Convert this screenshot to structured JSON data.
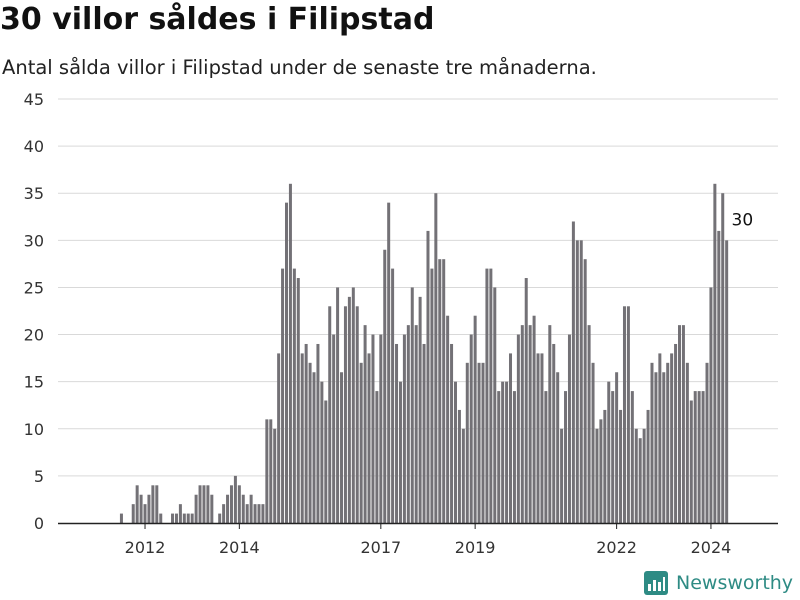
{
  "header": {
    "title": "30 villor såldes i Filipstad",
    "subtitle": "Antal sålda villor i Filipstad under de senaste tre månaderna."
  },
  "branding": {
    "name": "Newsworthy",
    "icon": "bar-chart-logo-icon",
    "color": "#2e8b84"
  },
  "chart_data": {
    "type": "bar",
    "title": "30 villor såldes i Filipstad",
    "subtitle": "Antal sålda villor i Filipstad under de senaste tre månaderna.",
    "xlabel": "",
    "ylabel": "",
    "ylim": [
      0,
      45
    ],
    "yticks": [
      0,
      5,
      10,
      15,
      20,
      25,
      30,
      35,
      40,
      45
    ],
    "grid": true,
    "legend": "none",
    "bar_color": "#737176",
    "highlight_color": "#1a9a8e",
    "start": "2011-01",
    "xticks": [
      {
        "label": "2012",
        "index": 14
      },
      {
        "label": "2014",
        "index": 38
      },
      {
        "label": "2017",
        "index": 74
      },
      {
        "label": "2019",
        "index": 98
      },
      {
        "label": "2022",
        "index": 134
      },
      {
        "label": "2024",
        "index": 158
      }
    ],
    "values": [
      0,
      0,
      0,
      0,
      0,
      0,
      0,
      0,
      1,
      0,
      0,
      2,
      4,
      3,
      2,
      3,
      4,
      4,
      1,
      0,
      0,
      1,
      1,
      2,
      1,
      1,
      1,
      3,
      4,
      4,
      4,
      3,
      0,
      1,
      2,
      3,
      4,
      5,
      4,
      3,
      2,
      3,
      2,
      2,
      2,
      11,
      11,
      10,
      18,
      27,
      34,
      36,
      27,
      26,
      18,
      19,
      17,
      16,
      19,
      15,
      13,
      23,
      20,
      25,
      16,
      23,
      24,
      25,
      23,
      17,
      21,
      18,
      20,
      14,
      20,
      29,
      34,
      27,
      19,
      15,
      20,
      21,
      25,
      21,
      24,
      19,
      31,
      27,
      35,
      28,
      28,
      22,
      19,
      15,
      12,
      10,
      17,
      20,
      22,
      17,
      17,
      27,
      27,
      25,
      14,
      15,
      15,
      18,
      14,
      20,
      21,
      26,
      21,
      22,
      18,
      18,
      14,
      21,
      19,
      16,
      10,
      14,
      20,
      32,
      30,
      30,
      28,
      21,
      17,
      10,
      11,
      12,
      15,
      14,
      16,
      12,
      23,
      23,
      14,
      10,
      9,
      10,
      12,
      17,
      16,
      18,
      16,
      17,
      18,
      19,
      21,
      21,
      17,
      13,
      14,
      14,
      14,
      17,
      25,
      36,
      31,
      35,
      30
    ],
    "highlight_index": 166,
    "annotation": {
      "index": 166,
      "value": 30,
      "label": "30"
    }
  }
}
